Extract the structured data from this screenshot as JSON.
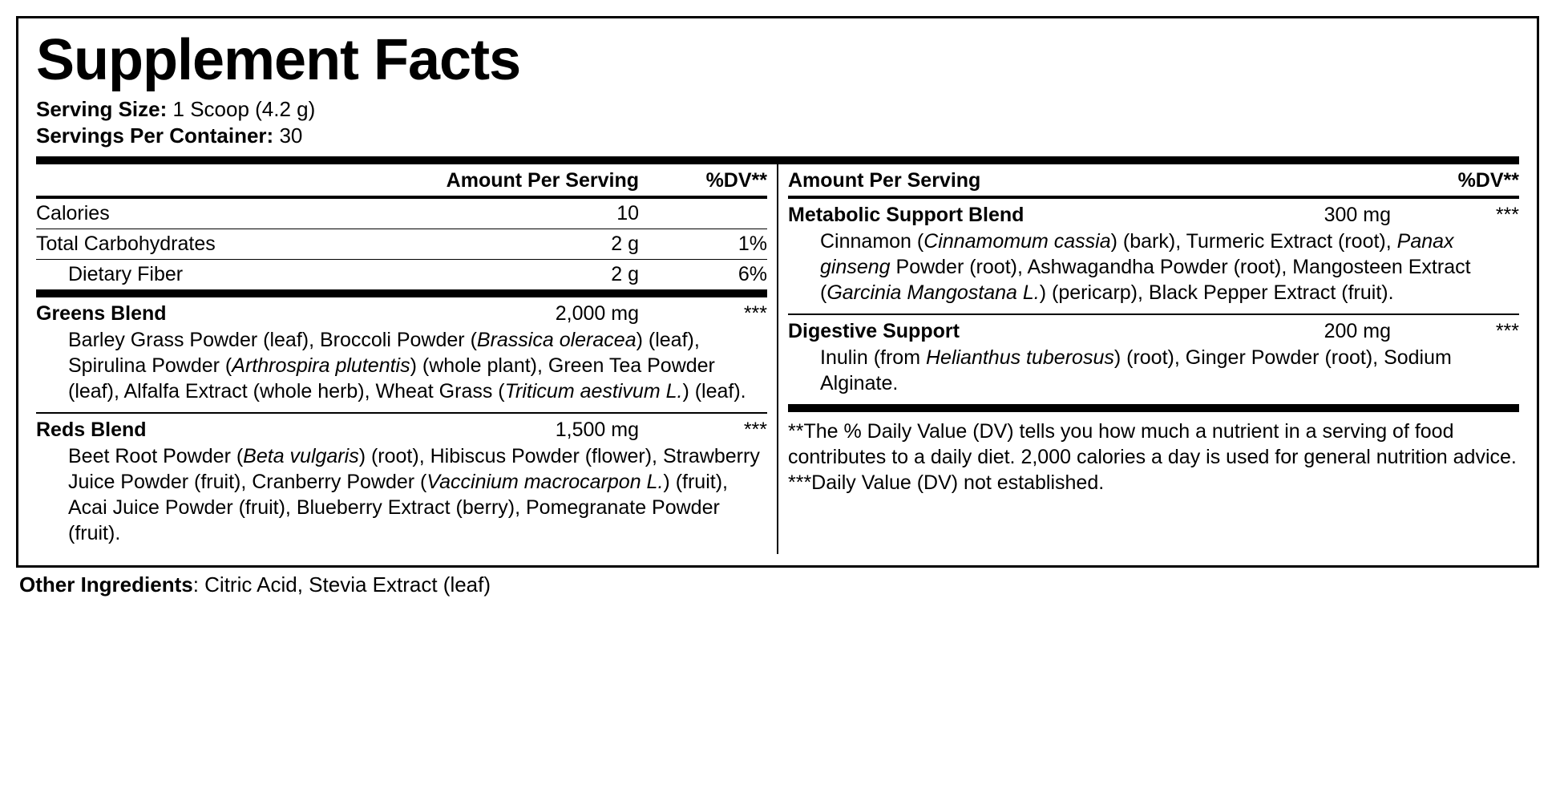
{
  "title": "Supplement Facts",
  "serving_size_label": "Serving Size:",
  "serving_size_value": "1 Scoop (4.2 g)",
  "servings_per_label": "Servings Per Container:",
  "servings_per_value": "30",
  "headers": {
    "amount_per_serving": "Amount Per Serving",
    "dv": "%DV**"
  },
  "nutrients": {
    "calories": {
      "name": "Calories",
      "amount": "10",
      "dv": ""
    },
    "carbs": {
      "name": "Total Carbohydrates",
      "amount": "2 g",
      "dv": "1%"
    },
    "fiber": {
      "name": "Dietary Fiber",
      "amount": "2 g",
      "dv": "6%"
    }
  },
  "blends": {
    "greens": {
      "name": "Greens Blend",
      "amount": "2,000 mg",
      "dv": "***",
      "body_html": "Barley Grass Powder (leaf), Broccoli Powder (<span class=\"ital\">Brassica oleracea</span>) (leaf), Spirulina Powder (<span class=\"ital\">Arthrospira plutentis</span>) (whole plant), Green Tea Powder (leaf), Alfalfa Extract (whole herb), Wheat Grass (<span class=\"ital\">Triticum aestivum L.</span>) (leaf)."
    },
    "reds": {
      "name": "Reds Blend",
      "amount": "1,500 mg",
      "dv": "***",
      "body_html": "Beet Root Powder (<span class=\"ital\">Beta vulgaris</span>) (root), Hibiscus Powder (flower), Strawberry Juice Powder (fruit), Cranberry Powder (<span class=\"ital\">Vaccinium macrocarpon L.</span>) (fruit), Acai Juice Powder (fruit), Blueberry Extract (berry), Pomegranate Powder (fruit)."
    },
    "metabolic": {
      "name": "Metabolic Support Blend",
      "amount": "300 mg",
      "dv": "***",
      "body_html": "Cinnamon (<span class=\"ital\">Cinnamomum cassia</span>) (bark), Turmeric Extract (root), <span class=\"ital\">Panax ginseng</span> Powder (root), Ashwagandha Powder (root), Mangosteen Extract (<span class=\"ital\">Garcinia Mangostana L.</span>) (pericarp), Black Pepper Extract (fruit)."
    },
    "digestive": {
      "name": "Digestive Support",
      "amount": "200 mg",
      "dv": "***",
      "body_html": "Inulin (from <span class=\"ital\">Helianthus tuberosus</span>) (root), Ginger Powder (root), Sodium Alginate."
    }
  },
  "footnotes": {
    "dv_explain": "**The % Daily Value (DV) tells you how much a nutrient in a serving of food contributes to a daily diet. 2,000 calories a day is used for general nutrition advice.",
    "not_established": "***Daily Value (DV) not established."
  },
  "other_ingredients_label": "Other Ingredients",
  "other_ingredients_value": ": Citric Acid, Stevia Extract (leaf)"
}
